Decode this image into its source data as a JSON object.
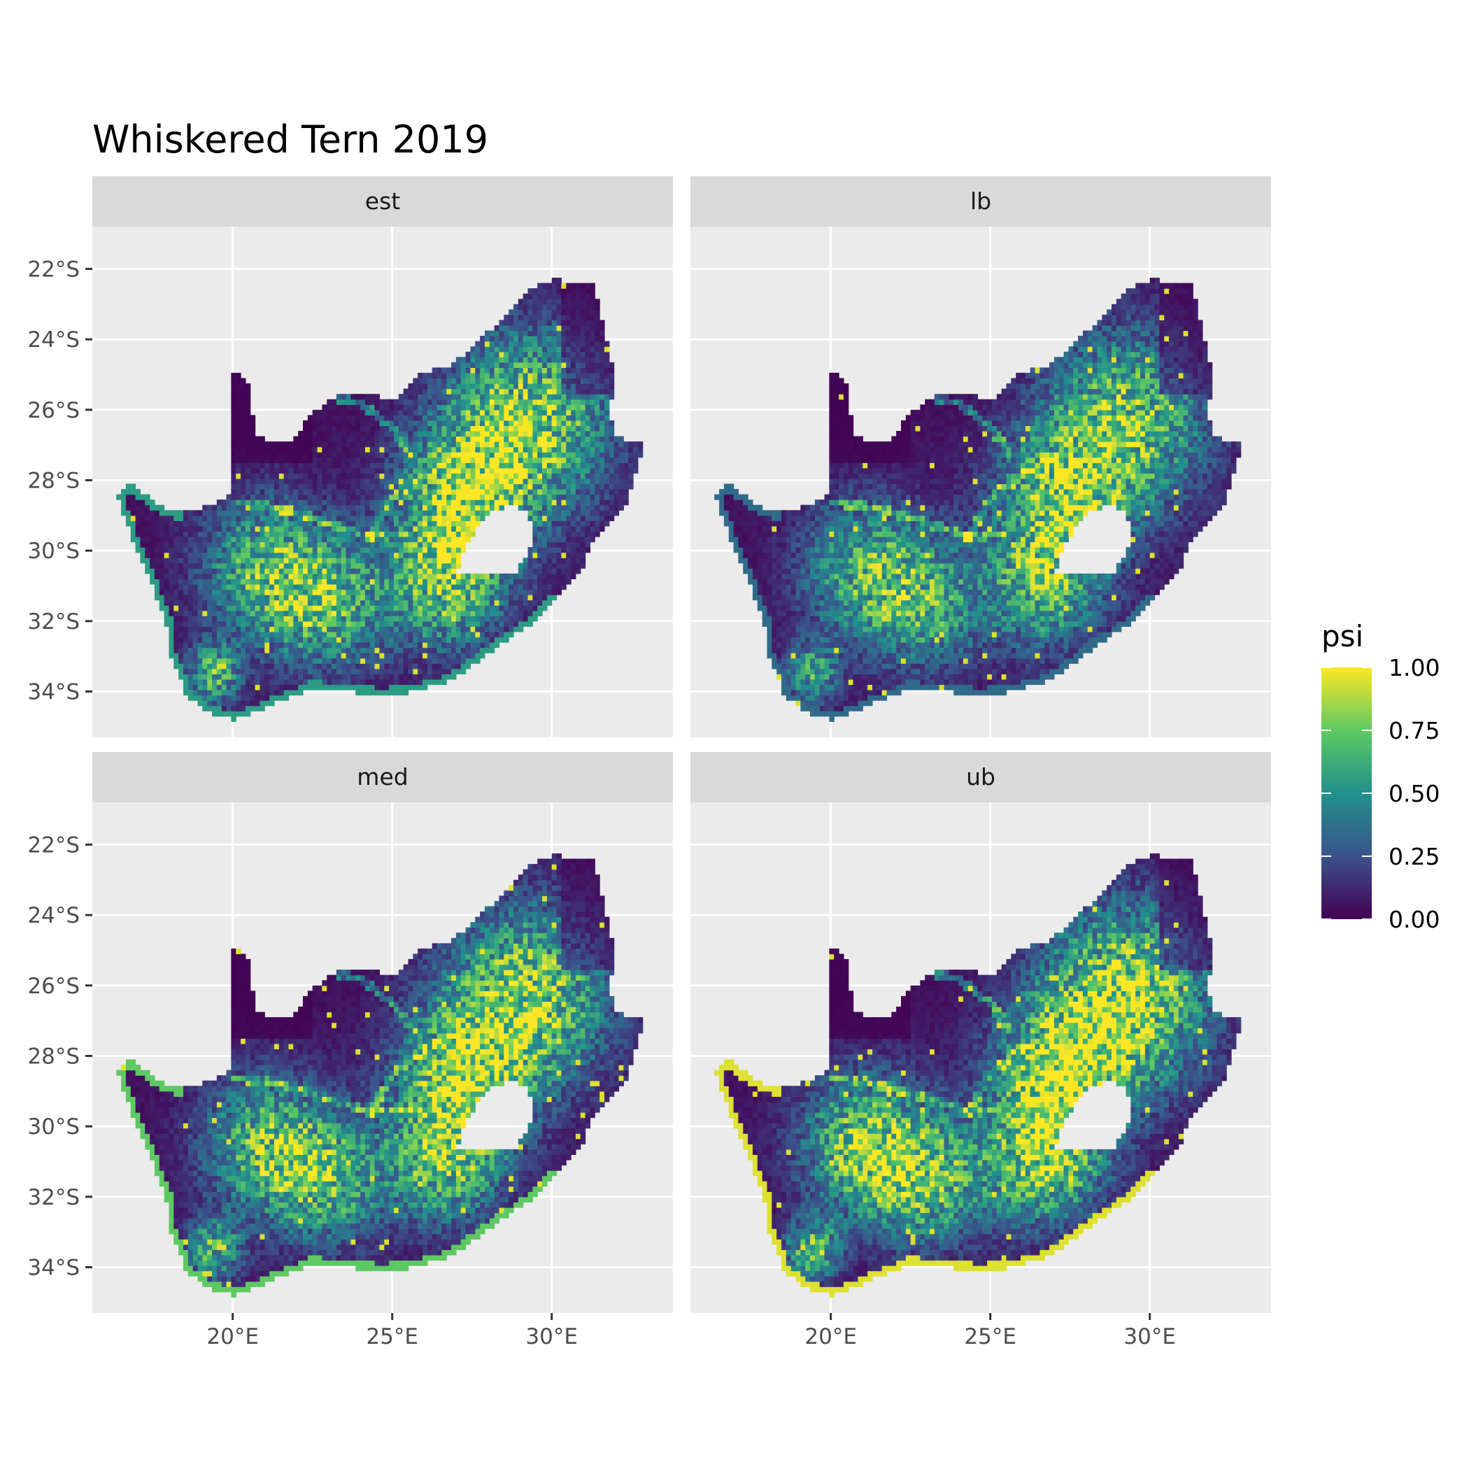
{
  "title": "Whiskered Tern 2019",
  "legend": {
    "title": "psi",
    "breaks": [
      "1.00",
      "0.75",
      "0.50",
      "0.25",
      "0.00"
    ],
    "values": [
      1.0,
      0.75,
      0.5,
      0.25,
      0.0
    ],
    "palette": [
      "#440154",
      "#3b528b",
      "#21918c",
      "#5ec962",
      "#fde725"
    ]
  },
  "panel_background": "#ebebeb",
  "strip_background": "#d9d9d9",
  "grid_color": "#ffffff",
  "chart_data": {
    "type": "heatmap",
    "variable": "psi",
    "facets": [
      {
        "label": "est",
        "level": 0.35,
        "coast": 0.55
      },
      {
        "label": "lb",
        "level": 0.25,
        "coast": 0.35
      },
      {
        "label": "med",
        "level": 0.33,
        "coast": 0.75
      },
      {
        "label": "ub",
        "level": 0.45,
        "coast": 0.95
      }
    ],
    "x_ticks": [
      {
        "value": 20,
        "label": "20°E"
      },
      {
        "value": 25,
        "label": "25°E"
      },
      {
        "value": 30,
        "label": "30°E"
      }
    ],
    "y_ticks": [
      {
        "value": -22,
        "label": "22°S"
      },
      {
        "value": -24,
        "label": "24°S"
      },
      {
        "value": -26,
        "label": "26°S"
      },
      {
        "value": -28,
        "label": "28°S"
      },
      {
        "value": -30,
        "label": "30°S"
      },
      {
        "value": -32,
        "label": "32°S"
      },
      {
        "value": -34,
        "label": "34°S"
      }
    ],
    "xlim": [
      15.6,
      33.8
    ],
    "ylim": [
      -35.3,
      -20.8
    ],
    "grid": true,
    "legend_position": "right",
    "outline": [
      [
        16.4,
        -28.5
      ],
      [
        16.8,
        -28.1
      ],
      [
        17.5,
        -28.6
      ],
      [
        18.2,
        -28.9
      ],
      [
        19.0,
        -28.8
      ],
      [
        20.0,
        -28.4
      ],
      [
        19.9,
        -24.8
      ],
      [
        20.5,
        -25.2
      ],
      [
        20.7,
        -26.8
      ],
      [
        21.8,
        -26.9
      ],
      [
        22.6,
        -26.0
      ],
      [
        23.5,
        -25.5
      ],
      [
        25.2,
        -25.7
      ],
      [
        25.8,
        -25.0
      ],
      [
        26.9,
        -24.7
      ],
      [
        28.0,
        -23.8
      ],
      [
        29.2,
        -22.6
      ],
      [
        30.0,
        -22.3
      ],
      [
        31.3,
        -22.4
      ],
      [
        31.6,
        -23.5
      ],
      [
        32.0,
        -25.2
      ],
      [
        31.8,
        -25.9
      ],
      [
        32.0,
        -26.8
      ],
      [
        32.9,
        -26.9
      ],
      [
        32.6,
        -27.9
      ],
      [
        32.3,
        -28.8
      ],
      [
        31.3,
        -29.7
      ],
      [
        30.9,
        -30.6
      ],
      [
        30.2,
        -31.2
      ],
      [
        29.3,
        -32.1
      ],
      [
        28.2,
        -32.8
      ],
      [
        26.8,
        -33.7
      ],
      [
        25.7,
        -34.0
      ],
      [
        24.7,
        -34.1
      ],
      [
        23.5,
        -34.0
      ],
      [
        22.5,
        -33.9
      ],
      [
        21.4,
        -34.3
      ],
      [
        20.1,
        -34.8
      ],
      [
        19.3,
        -34.6
      ],
      [
        18.5,
        -34.1
      ],
      [
        18.3,
        -33.5
      ],
      [
        18.0,
        -32.9
      ],
      [
        17.9,
        -32.0
      ],
      [
        17.6,
        -31.3
      ],
      [
        17.1,
        -30.2
      ],
      [
        16.6,
        -29.1
      ]
    ],
    "lesotho": [
      [
        27.0,
        -30.6
      ],
      [
        27.4,
        -29.7
      ],
      [
        28.0,
        -28.9
      ],
      [
        28.8,
        -28.7
      ],
      [
        29.3,
        -29.0
      ],
      [
        29.4,
        -29.8
      ],
      [
        28.9,
        -30.6
      ],
      [
        28.2,
        -30.7
      ],
      [
        27.6,
        -30.6
      ]
    ],
    "hotspots": [
      {
        "lon": 29.3,
        "lat": -26.3,
        "r": 1.8,
        "v": 0.9
      },
      {
        "lon": 27.2,
        "lat": -28.5,
        "r": 1.4,
        "v": 0.8
      },
      {
        "lon": 26.7,
        "lat": -31.0,
        "r": 1.3,
        "v": 0.75
      },
      {
        "lon": 21.0,
        "lat": -30.5,
        "r": 1.4,
        "v": 0.7
      },
      {
        "lon": 23.0,
        "lat": -31.5,
        "r": 1.3,
        "v": 0.65
      },
      {
        "lon": 19.4,
        "lat": -33.5,
        "r": 0.6,
        "v": 0.7
      }
    ],
    "rivers": [
      [
        [
          20.0,
          -28.6
        ],
        [
          21.5,
          -28.8
        ],
        [
          23.0,
          -29.2
        ],
        [
          24.3,
          -29.6
        ],
        [
          25.5,
          -29.5
        ]
      ],
      [
        [
          24.3,
          -29.6
        ],
        [
          25.0,
          -28.5
        ],
        [
          26.0,
          -27.8
        ],
        [
          27.0,
          -27.3
        ]
      ],
      [
        [
          22.5,
          -25.5
        ],
        [
          24.0,
          -25.8
        ],
        [
          25.0,
          -26.5
        ],
        [
          25.6,
          -27.2
        ]
      ]
    ]
  }
}
